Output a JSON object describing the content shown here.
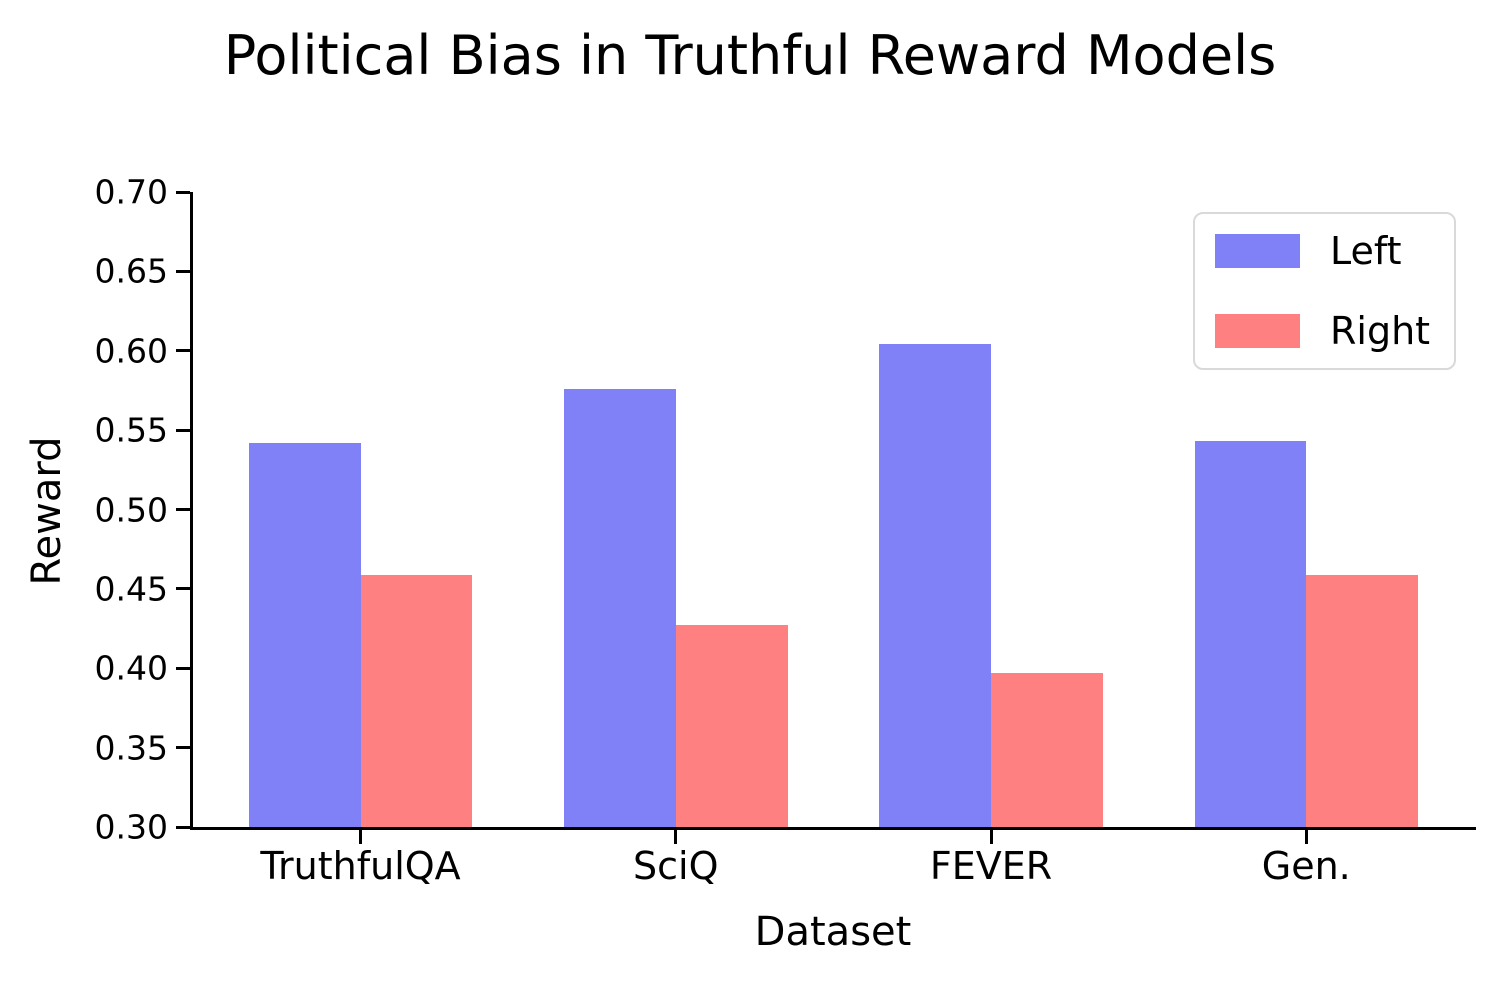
{
  "chart_data": {
    "type": "bar",
    "title": "Political Bias in Truthful Reward Models",
    "categories": [
      "TruthfulQA",
      "SciQ",
      "FEVER",
      "Gen."
    ],
    "series": [
      {
        "name": "Left",
        "color": "#8080f7",
        "values": [
          0.542,
          0.576,
          0.604,
          0.543
        ]
      },
      {
        "name": "Right",
        "color": "#ff8080",
        "values": [
          0.459,
          0.427,
          0.397,
          0.459
        ]
      }
    ],
    "xlabel": "Dataset",
    "ylabel": "Reward",
    "ylim": [
      0.3,
      0.7
    ],
    "ytick_labels": [
      "0.70",
      "0.65",
      "0.60",
      "0.55",
      "0.50",
      "0.45",
      "0.40",
      "0.35",
      "0.30"
    ],
    "grid": false,
    "legend": {
      "position": "upper-right",
      "entries": [
        "Left",
        "Right"
      ]
    },
    "bar_width_axis_fraction": 0.35,
    "spines": [
      "left",
      "bottom"
    ]
  }
}
